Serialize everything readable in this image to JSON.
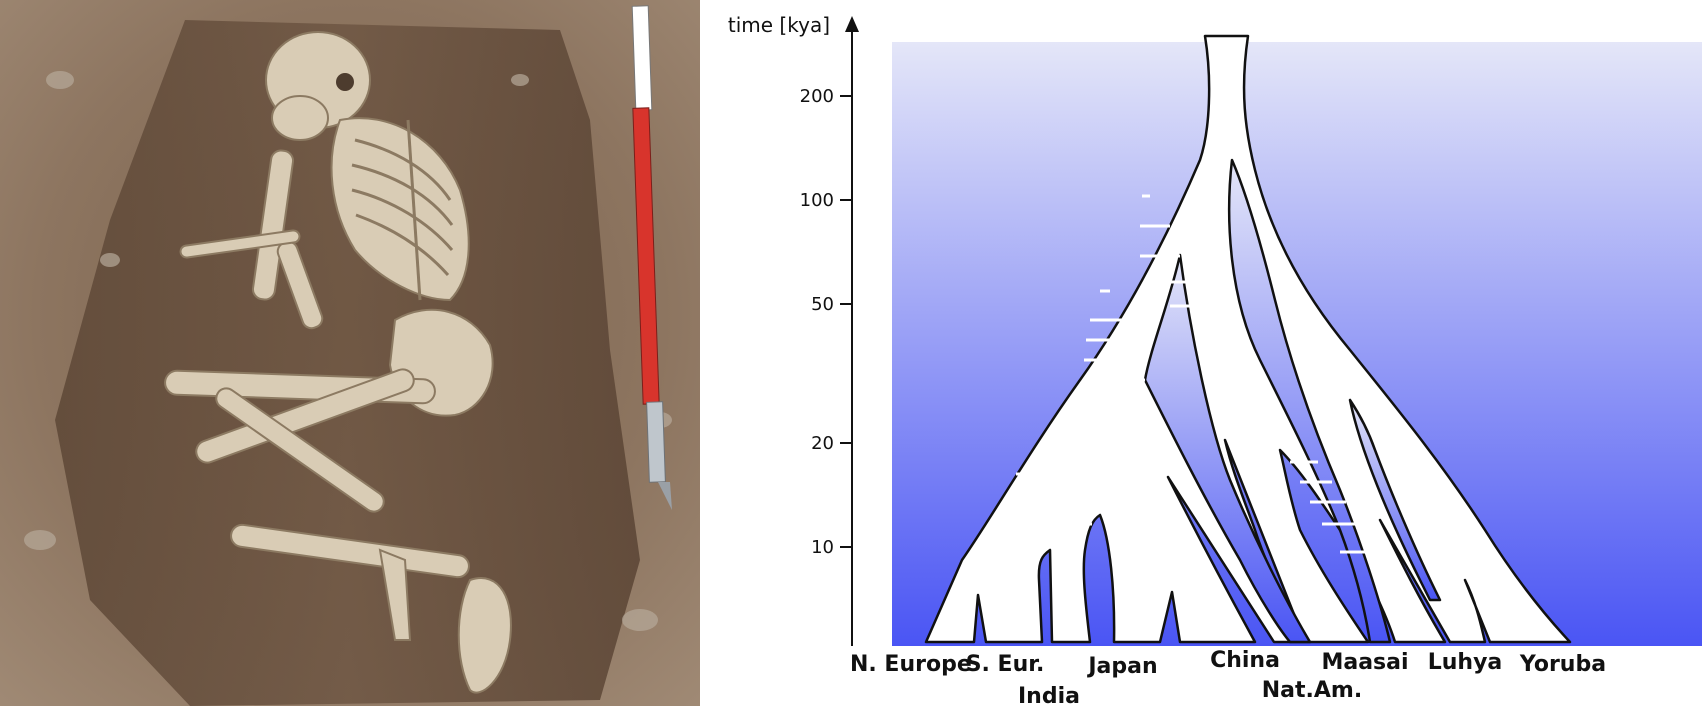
{
  "photo": {
    "subject": "skeleton-in-burial-pit",
    "scale_bar_colors": [
      "#d8342c",
      "#ffffff",
      "#bfc6cc"
    ]
  },
  "diagram": {
    "axis_title": "time [kya]",
    "y_ticks": [
      "200",
      "100",
      "50",
      "20",
      "10"
    ],
    "populations": [
      "N. Europe",
      "S. Eur.",
      "India",
      "Japan",
      "China",
      "Nat.Am.",
      "Maasai",
      "Luhya",
      "Yoruba"
    ],
    "colors": {
      "gradient_top": "#e4e6f8",
      "gradient_bottom": "#4a55f4",
      "tree_fill": "#ffffff",
      "outline": "#111111"
    }
  }
}
